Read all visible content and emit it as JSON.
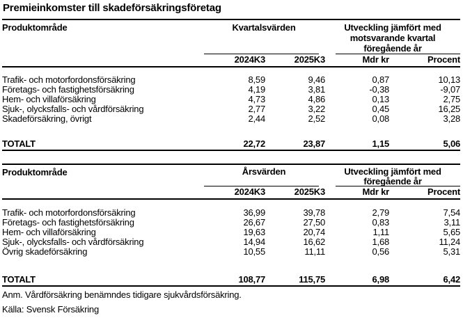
{
  "title": "Premieinkomster till skadeförsäkringsföretag",
  "tables": [
    {
      "name": "Kvartalsvärden",
      "product_header": "Produktområde",
      "group1_header": "Kvartalsvärden",
      "group2_header": "Utveckling jämfört med\nmotsvarande kvartal\nföregående år",
      "col_headers": [
        "2024K3",
        "2025K3",
        "Mdr kr",
        "Procent"
      ],
      "rows": [
        {
          "label": "Trafik- och motorfordonsförsäkring",
          "values": [
            "8,59",
            "9,46",
            "0,87",
            "10,13"
          ]
        },
        {
          "label": "Företags- och fastighetsförsäkring",
          "values": [
            "4,19",
            "3,81",
            "-0,38",
            "-9,07"
          ]
        },
        {
          "label": "Hem- och villaförsäkring",
          "values": [
            "4,73",
            "4,86",
            "0,13",
            "2,75"
          ]
        },
        {
          "label": "Sjuk-, olycksfalls- och vårdförsäkring",
          "values": [
            "2,77",
            "3,22",
            "0,45",
            "16,25"
          ]
        },
        {
          "label": "Skadeförsäkring, övrigt",
          "values": [
            "2,44",
            "2,52",
            "0,08",
            "3,28"
          ]
        }
      ],
      "total": {
        "label": "TOTALT",
        "values": [
          "22,72",
          "23,87",
          "1,15",
          "5,06"
        ]
      }
    },
    {
      "name": "Årsvärden",
      "product_header": "Produktområde",
      "group1_header": "Årsvärden",
      "group2_header": "Utveckling jämfört med\nföregående år",
      "col_headers": [
        "2024K3",
        "2025K3",
        "Mdr kr",
        "Procent"
      ],
      "rows": [
        {
          "label": "Trafik- och motorfordonsförsäkring",
          "values": [
            "36,99",
            "39,78",
            "2,79",
            "7,54"
          ]
        },
        {
          "label": "Företags- och fastighetsförsäkring",
          "values": [
            "26,67",
            "27,50",
            "0,83",
            "3,11"
          ]
        },
        {
          "label": "Hem- och villaförsäkring",
          "values": [
            "19,63",
            "20,74",
            "1,11",
            "5,65"
          ]
        },
        {
          "label": "Sjuk-, olycksfalls- och vårdförsäkring",
          "values": [
            "14,94",
            "16,62",
            "1,68",
            "11,24"
          ]
        },
        {
          "label": "Övrig skadeförsäkring",
          "values": [
            "10,55",
            "11,11",
            "0,56",
            "5,31"
          ]
        }
      ],
      "total": {
        "label": "TOTALT",
        "values": [
          "108,77",
          "115,75",
          "6,98",
          "6,42"
        ]
      }
    }
  ],
  "footnotes": {
    "anm": "Anm. Vårdförsäkring benämndes tidigare sjukvårdsförsäkring.",
    "source": "Källa: Svensk Försäkring"
  },
  "colors": {
    "text": "#000000",
    "rule": "#000000",
    "background": "#ffffff"
  }
}
